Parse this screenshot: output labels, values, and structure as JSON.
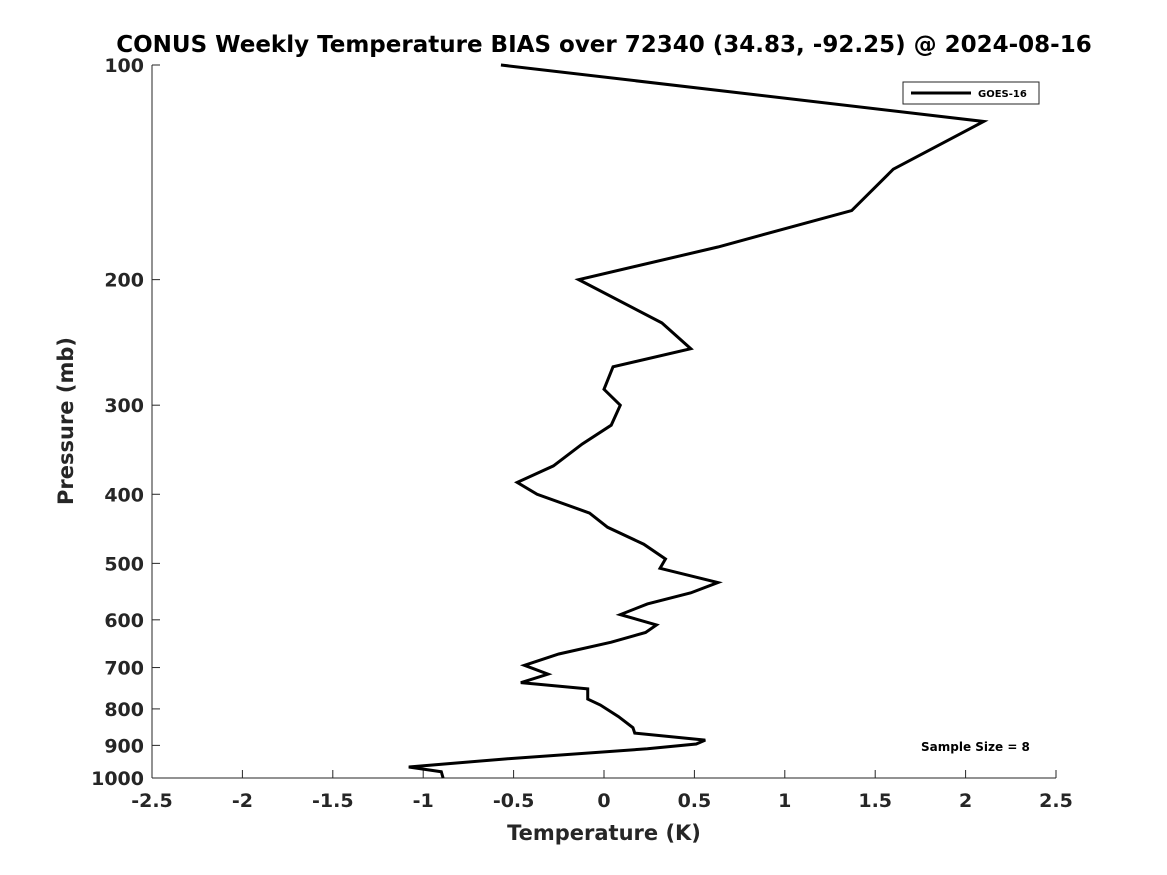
{
  "chart_data": {
    "type": "line",
    "title": "CONUS Weekly Temperature BIAS over 72340 (34.83, -92.25) @ 2024-08-16",
    "xlabel": "Temperature (K)",
    "ylabel": "Pressure (mb)",
    "xlim": [
      -2.5,
      2.5
    ],
    "ylim": [
      100,
      1000
    ],
    "y_scale": "log",
    "y_reversed": true,
    "x_ticks": [
      -2.5,
      -2,
      -1.5,
      -1,
      -0.5,
      0,
      0.5,
      1,
      1.5,
      2,
      2.5
    ],
    "x_tick_labels": [
      "-2.5",
      "-2",
      "-1.5",
      "-1",
      "-0.5",
      "0",
      "0.5",
      "1",
      "1.5",
      "2",
      "2.5"
    ],
    "y_ticks": [
      100,
      200,
      300,
      400,
      500,
      600,
      700,
      800,
      900,
      1000
    ],
    "y_tick_labels": [
      "100",
      "200",
      "300",
      "400",
      "500",
      "600",
      "700",
      "800",
      "900",
      "1000"
    ],
    "grid": false,
    "legend": {
      "placement": "top-right",
      "entries": [
        "GOES-16"
      ]
    },
    "annotation": "Sample Size = 8",
    "series": [
      {
        "name": "GOES-16",
        "color": "#000000",
        "points": [
          [
            -0.57,
            100
          ],
          [
            2.1,
            120
          ],
          [
            1.6,
            140
          ],
          [
            1.37,
            160
          ],
          [
            0.63,
            180
          ],
          [
            -0.14,
            200
          ],
          [
            0.32,
            230
          ],
          [
            0.48,
            250
          ],
          [
            0.05,
            265
          ],
          [
            0.0,
            285
          ],
          [
            0.09,
            300
          ],
          [
            0.04,
            320
          ],
          [
            -0.12,
            340
          ],
          [
            -0.28,
            365
          ],
          [
            -0.48,
            385
          ],
          [
            -0.37,
            400
          ],
          [
            -0.08,
            425
          ],
          [
            0.02,
            445
          ],
          [
            0.22,
            470
          ],
          [
            0.34,
            493
          ],
          [
            0.31,
            508
          ],
          [
            0.63,
            532
          ],
          [
            0.48,
            550
          ],
          [
            0.24,
            570
          ],
          [
            0.09,
            590
          ],
          [
            0.29,
            610
          ],
          [
            0.23,
            625
          ],
          [
            0.04,
            645
          ],
          [
            -0.25,
            670
          ],
          [
            -0.44,
            695
          ],
          [
            -0.31,
            715
          ],
          [
            -0.46,
            735
          ],
          [
            -0.09,
            750
          ],
          [
            -0.09,
            775
          ],
          [
            -0.02,
            790
          ],
          [
            0.08,
            820
          ],
          [
            0.16,
            850
          ],
          [
            0.17,
            865
          ],
          [
            0.56,
            885
          ],
          [
            0.51,
            896
          ],
          [
            0.24,
            910
          ],
          [
            -0.54,
            940
          ],
          [
            -1.08,
            965
          ],
          [
            -0.9,
            980
          ],
          [
            -0.89,
            1000
          ]
        ]
      }
    ]
  }
}
